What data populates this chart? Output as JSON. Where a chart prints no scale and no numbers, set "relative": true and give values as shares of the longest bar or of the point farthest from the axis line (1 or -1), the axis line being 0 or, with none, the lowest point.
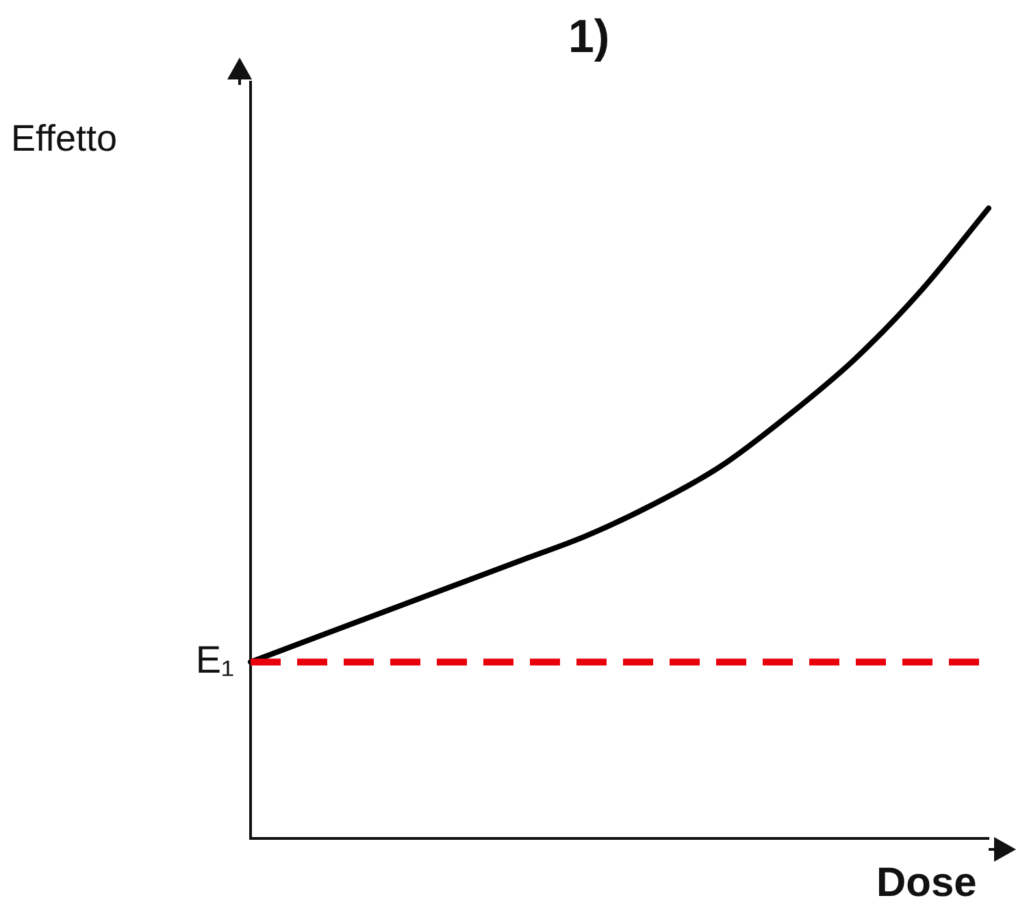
{
  "chart_data": {
    "type": "line",
    "title": "1)",
    "xlabel": "Dose",
    "ylabel": "Effetto",
    "relative": true,
    "legend": false,
    "grid": false,
    "marker": "none",
    "line_style": "solid",
    "categories": [
      null,
      null,
      null,
      null,
      null,
      null,
      null,
      null,
      null,
      null,
      null,
      null
    ],
    "series": [
      {
        "color": "#000000",
        "values": [
          0.28,
          0.32,
          0.36,
          0.4,
          0.44,
          0.48,
          0.53,
          0.59,
          0.67,
          0.76,
          0.87,
          1
        ]
      }
    ],
    "ref_lines": [
      {
        "axis": "y",
        "value": 0.28,
        "label": "E₁",
        "color": "#e8000b",
        "line_style": "dashed"
      }
    ]
  }
}
